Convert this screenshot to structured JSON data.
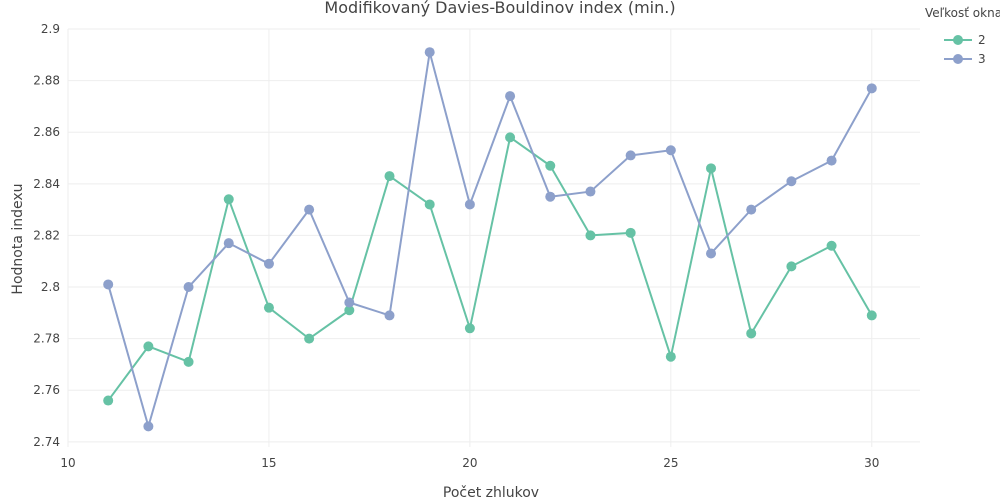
{
  "chart_data": {
    "type": "line",
    "title": "Modifikovaný Davies-Bouldinov index (min.)",
    "xlabel": "Počet zhlukov",
    "ylabel": "Hodnota indexu",
    "xlim": [
      10,
      31.2
    ],
    "ylim": [
      2.738,
      2.9
    ],
    "x_ticks": [
      10,
      15,
      20,
      25,
      30
    ],
    "y_ticks": [
      2.74,
      2.76,
      2.78,
      2.8,
      2.82,
      2.84,
      2.86,
      2.88,
      2.9
    ],
    "x_tick_labels": [
      "10",
      "15",
      "20",
      "25",
      "30"
    ],
    "y_tick_labels": [
      "2.74",
      "2.76",
      "2.78",
      "2.8",
      "2.82",
      "2.84",
      "2.86",
      "2.88",
      "2.9"
    ],
    "grid": true,
    "legend_title": "Veľkosť okna",
    "legend_position": "top-right",
    "x": [
      11,
      12,
      13,
      14,
      15,
      16,
      17,
      18,
      19,
      20,
      21,
      22,
      23,
      24,
      25,
      26,
      27,
      28,
      29,
      30
    ],
    "series": [
      {
        "name": "2",
        "color": "#66c2a5",
        "values": [
          2.756,
          2.777,
          2.771,
          2.834,
          2.792,
          2.78,
          2.791,
          2.843,
          2.832,
          2.784,
          2.858,
          2.847,
          2.82,
          2.821,
          2.773,
          2.846,
          2.782,
          2.808,
          2.816,
          2.789
        ]
      },
      {
        "name": "3",
        "color": "#8da0cb",
        "values": [
          2.801,
          2.746,
          2.8,
          2.817,
          2.809,
          2.83,
          2.794,
          2.789,
          2.891,
          2.832,
          2.874,
          2.835,
          2.837,
          2.851,
          2.853,
          2.813,
          2.83,
          2.841,
          2.849,
          2.877
        ]
      }
    ]
  }
}
